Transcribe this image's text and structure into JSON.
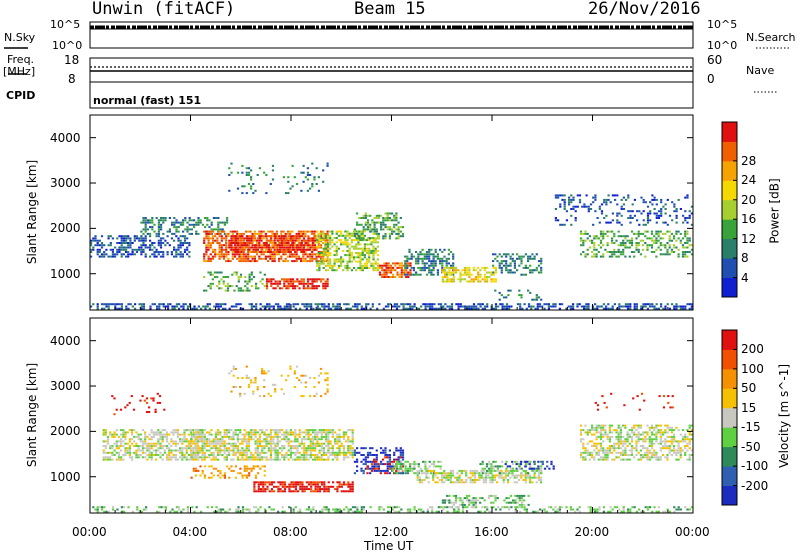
{
  "header": {
    "station": "Unwin (fitACF)",
    "beam": "Beam 15",
    "date": "26/Nov/2016"
  },
  "noise_panel": {
    "left_label": "N.Sky",
    "right_label": "N.Search",
    "left_ticks": [
      "10^5",
      "10^0"
    ],
    "right_ticks": [
      "10^5",
      "10^0"
    ]
  },
  "freq_panel": {
    "left_label_1": "Freq.",
    "left_label_2": "[MHz]",
    "left_ticks": [
      "18",
      "8"
    ],
    "right_label": "Nave",
    "right_ticks": [
      "60",
      "0"
    ]
  },
  "cpid": {
    "label": "CPID",
    "value": "normal (fast) 151"
  },
  "chart_data": [
    {
      "type": "heatmap",
      "name": "power",
      "ylabel": "Slant Range [km]",
      "xlabel": "Time UT",
      "x_range_hours": [
        0,
        24
      ],
      "ylim_km": [
        200,
        4500
      ],
      "x_ticks": [
        "00:00",
        "04:00",
        "08:00",
        "12:00",
        "16:00",
        "20:00",
        "00:00"
      ],
      "y_ticks": [
        1000,
        2000,
        3000,
        4000
      ],
      "colorbar": {
        "label": "Power [dB]",
        "ticks": [
          "4",
          "8",
          "12",
          "16",
          "20",
          "24",
          "28"
        ],
        "colors": [
          "#1020d0",
          "#1f4fb0",
          "#2a7f6a",
          "#37a33a",
          "#a8cf30",
          "#f5d800",
          "#f5a300",
          "#f06000",
          "#e01010"
        ]
      },
      "regions": [
        {
          "t0": 0.0,
          "t1": 24.0,
          "r0": 250,
          "r1": 400,
          "level": 1,
          "density": 0.55
        },
        {
          "t0": 0.0,
          "t1": 4.0,
          "r0": 1400,
          "r1": 1900,
          "level": 1,
          "density": 0.5
        },
        {
          "t0": 2.0,
          "t1": 5.5,
          "r0": 1900,
          "r1": 2300,
          "level": 2,
          "density": 0.45
        },
        {
          "t0": 4.5,
          "t1": 9.5,
          "r0": 1300,
          "r1": 2000,
          "level": 7,
          "density": 0.7
        },
        {
          "t0": 5.5,
          "t1": 9.0,
          "r0": 1500,
          "r1": 1900,
          "level": 8,
          "density": 0.6
        },
        {
          "t0": 7.0,
          "t1": 9.5,
          "r0": 700,
          "r1": 950,
          "level": 8,
          "density": 0.7
        },
        {
          "t0": 4.5,
          "t1": 7.0,
          "r0": 650,
          "r1": 1100,
          "level": 3,
          "density": 0.35
        },
        {
          "t0": 9.0,
          "t1": 11.5,
          "r0": 1100,
          "r1": 2000,
          "level": 4,
          "density": 0.55
        },
        {
          "t0": 10.5,
          "t1": 12.5,
          "r0": 1800,
          "r1": 2400,
          "level": 3,
          "density": 0.5
        },
        {
          "t0": 11.5,
          "t1": 12.8,
          "r0": 950,
          "r1": 1300,
          "level": 7,
          "density": 0.65
        },
        {
          "t0": 12.5,
          "t1": 14.5,
          "r0": 1000,
          "r1": 1600,
          "level": 2,
          "density": 0.5
        },
        {
          "t0": 14.0,
          "t1": 16.2,
          "r0": 850,
          "r1": 1200,
          "level": 5,
          "density": 0.6
        },
        {
          "t0": 16.0,
          "t1": 18.0,
          "r0": 1000,
          "r1": 1500,
          "level": 2,
          "density": 0.4
        },
        {
          "t0": 16.0,
          "t1": 18.0,
          "r0": 450,
          "r1": 700,
          "level": 2,
          "density": 0.3
        },
        {
          "t0": 19.5,
          "t1": 24.0,
          "r0": 1400,
          "r1": 2000,
          "level": 3,
          "density": 0.45
        },
        {
          "t0": 18.5,
          "t1": 24.0,
          "r0": 2100,
          "r1": 2800,
          "level": 1,
          "density": 0.2
        },
        {
          "t0": 5.5,
          "t1": 9.5,
          "r0": 2800,
          "r1": 3500,
          "level": 2,
          "density": 0.12
        }
      ]
    },
    {
      "type": "heatmap",
      "name": "velocity",
      "ylabel": "Slant Range [km]",
      "xlabel": "Time UT",
      "x_range_hours": [
        0,
        24
      ],
      "ylim_km": [
        200,
        4500
      ],
      "x_ticks": [
        "00:00",
        "04:00",
        "08:00",
        "12:00",
        "16:00",
        "20:00",
        "00:00"
      ],
      "y_ticks": [
        1000,
        2000,
        3000,
        4000
      ],
      "colorbar": {
        "label": "Velocity [m s^-1]",
        "ticks": [
          "200",
          "100",
          "50",
          "15",
          "-15",
          "-50",
          "-100",
          "-200"
        ],
        "colors": [
          "#1c2bc0",
          "#2f5fb0",
          "#2f8a5a",
          "#5fd040",
          "#c8c8c0",
          "#f5c000",
          "#f59000",
          "#f05000",
          "#e01010"
        ]
      },
      "regions": [
        {
          "t0": 0.0,
          "t1": 24.0,
          "r0": 250,
          "r1": 400,
          "level": 3,
          "density": 0.35
        },
        {
          "t0": 0.5,
          "t1": 4.5,
          "r0": 1400,
          "r1": 2100,
          "level": 4,
          "density": 0.55
        },
        {
          "t0": 4.0,
          "t1": 10.5,
          "r0": 1400,
          "r1": 2100,
          "level": 4,
          "density": 0.7
        },
        {
          "t0": 6.5,
          "t1": 10.5,
          "r0": 700,
          "r1": 950,
          "level": 8,
          "density": 0.65
        },
        {
          "t0": 4.0,
          "t1": 7.0,
          "r0": 1000,
          "r1": 1300,
          "level": 6,
          "density": 0.4
        },
        {
          "t0": 10.5,
          "t1": 12.5,
          "r0": 1100,
          "r1": 1700,
          "level": 0,
          "density": 0.45
        },
        {
          "t0": 11.0,
          "t1": 12.5,
          "r0": 1100,
          "r1": 1500,
          "level": 8,
          "density": 0.25
        },
        {
          "t0": 12.0,
          "t1": 14.0,
          "r0": 1100,
          "r1": 1400,
          "level": 3,
          "density": 0.5
        },
        {
          "t0": 13.0,
          "t1": 18.0,
          "r0": 900,
          "r1": 1200,
          "level": 4,
          "density": 0.6
        },
        {
          "t0": 15.5,
          "t1": 18.0,
          "r0": 1100,
          "r1": 1400,
          "level": 3,
          "density": 0.4
        },
        {
          "t0": 16.5,
          "t1": 18.5,
          "r0": 1200,
          "r1": 1400,
          "level": 0,
          "density": 0.3
        },
        {
          "t0": 14.0,
          "t1": 17.5,
          "r0": 350,
          "r1": 650,
          "level": 3,
          "density": 0.35
        },
        {
          "t0": 19.5,
          "t1": 24.0,
          "r0": 1400,
          "r1": 2200,
          "level": 4,
          "density": 0.55
        },
        {
          "t0": 0.5,
          "t1": 3.0,
          "r0": 2400,
          "r1": 2900,
          "level": 8,
          "density": 0.08
        },
        {
          "t0": 20.0,
          "t1": 23.5,
          "r0": 2500,
          "r1": 2900,
          "level": 8,
          "density": 0.07
        },
        {
          "t0": 5.5,
          "t1": 9.5,
          "r0": 2800,
          "r1": 3500,
          "level": 5,
          "density": 0.12
        }
      ]
    }
  ]
}
